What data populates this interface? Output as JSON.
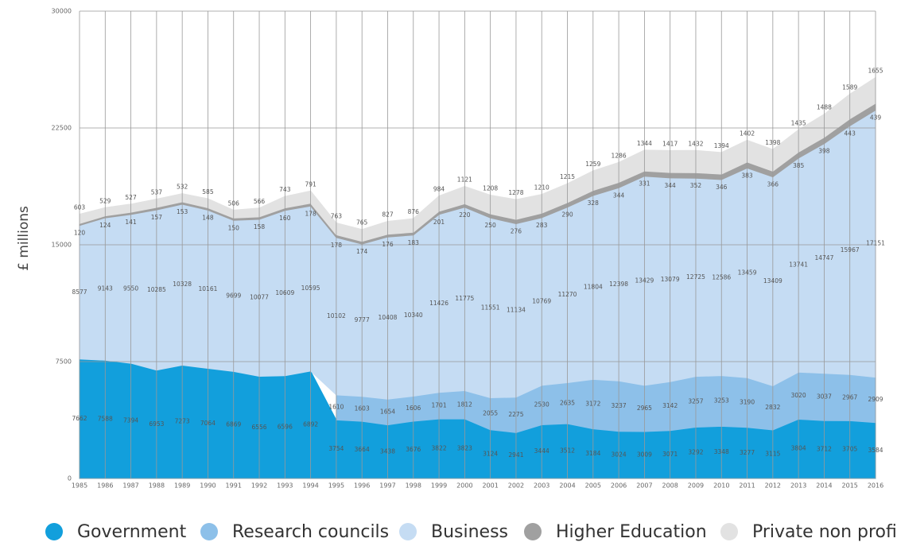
{
  "chart_data": {
    "type": "stacked_area",
    "ylabel": "£ millions",
    "categories": [
      "1985",
      "1986",
      "1987",
      "1988",
      "1989",
      "1990",
      "1991",
      "1992",
      "1993",
      "1994",
      "1995",
      "1996",
      "1997",
      "1998",
      "1999",
      "2000",
      "2001",
      "2002",
      "2003",
      "2004",
      "2005",
      "2006",
      "2007",
      "2008",
      "2009",
      "2010",
      "2011",
      "2012",
      "2013",
      "2014",
      "2015",
      "2016"
    ],
    "ylim": [
      0,
      30000
    ],
    "yticks": [
      0,
      7500,
      15000,
      22500,
      30000
    ],
    "grid": true,
    "series": [
      {
        "name": "Government",
        "color": "#129fdc",
        "values": [
          7662,
          7588,
          7394,
          6953,
          7273,
          7064,
          6869,
          6556,
          6596,
          6892,
          3754,
          3664,
          3438,
          3676,
          3822,
          3823,
          3124,
          2941,
          3444,
          3512,
          3184,
          3024,
          3009,
          3071,
          3292,
          3348,
          3277,
          3115,
          3804,
          3712,
          3705,
          3584
        ]
      },
      {
        "name": "Research councils",
        "color": "#8dc0e9",
        "values": [
          null,
          null,
          null,
          null,
          null,
          null,
          null,
          null,
          null,
          null,
          1610,
          1603,
          1654,
          1606,
          1701,
          1812,
          2055,
          2275,
          2530,
          2635,
          3172,
          3237,
          2965,
          3142,
          3257,
          3253,
          3190,
          2832,
          3020,
          3037,
          2967,
          2909
        ]
      },
      {
        "name": "Business",
        "color": "#c5dcf3",
        "values": [
          8577,
          9143,
          9550,
          10285,
          10328,
          10161,
          9699,
          10077,
          10609,
          10595,
          10102,
          9777,
          10408,
          10340,
          11426,
          11775,
          11551,
          11134,
          10769,
          11270,
          11804,
          12398,
          13429,
          13079,
          12725,
          12586,
          13459,
          13409,
          13741,
          14747,
          15967,
          17151
        ]
      },
      {
        "name": "Higher Education",
        "color": "#a0a0a0",
        "values": [
          120,
          124,
          141,
          157,
          153,
          148,
          150,
          158,
          160,
          178,
          178,
          174,
          176,
          183,
          201,
          220,
          250,
          276,
          283,
          290,
          328,
          344,
          331,
          344,
          352,
          346,
          383,
          366,
          385,
          398,
          443,
          439
        ]
      },
      {
        "name": "Private non profit",
        "color": "#e2e2e2",
        "values": [
          603,
          529,
          527,
          537,
          532,
          585,
          506,
          566,
          743,
          791,
          763,
          765,
          827,
          876,
          984,
          1121,
          1208,
          1278,
          1210,
          1215,
          1259,
          1286,
          1344,
          1417,
          1432,
          1394,
          1402,
          1398,
          1435,
          1488,
          1589,
          1655
        ]
      }
    ]
  }
}
